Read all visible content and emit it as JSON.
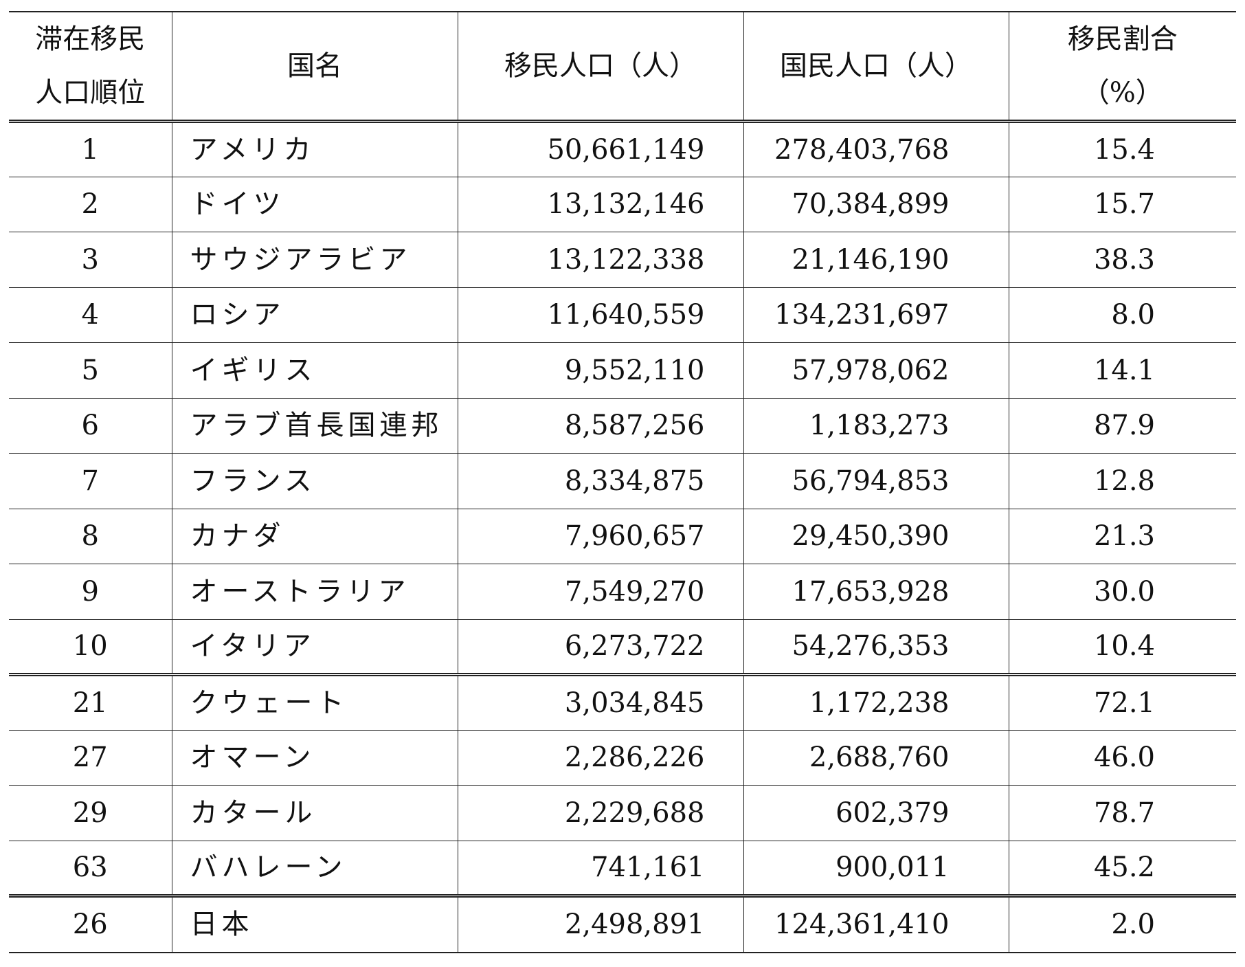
{
  "headers": {
    "rank_line1": "滞在移民",
    "rank_line2": "人口順位",
    "country": "国名",
    "migrant_population": "移民人口（人）",
    "national_population": "国民人口（人）",
    "share_line1": "移民割合",
    "share_line2": "（%）"
  },
  "top10": [
    {
      "rank": "1",
      "country": "アメリカ",
      "migrant": "50,661,149",
      "national": "278,403,768",
      "share": "15.4"
    },
    {
      "rank": "2",
      "country": "ドイツ",
      "migrant": "13,132,146",
      "national": "70,384,899",
      "share": "15.7"
    },
    {
      "rank": "3",
      "country": "サウジアラビア",
      "migrant": "13,122,338",
      "national": "21,146,190",
      "share": "38.3"
    },
    {
      "rank": "4",
      "country": "ロシア",
      "migrant": "11,640,559",
      "national": "134,231,697",
      "share": "8.0"
    },
    {
      "rank": "5",
      "country": "イギリス",
      "migrant": "9,552,110",
      "national": "57,978,062",
      "share": "14.1"
    },
    {
      "rank": "6",
      "country": "アラブ首長国連邦",
      "migrant": "8,587,256",
      "national": "1,183,273",
      "share": "87.9"
    },
    {
      "rank": "7",
      "country": "フランス",
      "migrant": "8,334,875",
      "national": "56,794,853",
      "share": "12.8"
    },
    {
      "rank": "8",
      "country": "カナダ",
      "migrant": "7,960,657",
      "national": "29,450,390",
      "share": "21.3"
    },
    {
      "rank": "9",
      "country": "オーストラリア",
      "migrant": "7,549,270",
      "national": "17,653,928",
      "share": "30.0"
    },
    {
      "rank": "10",
      "country": "イタリア",
      "migrant": "6,273,722",
      "national": "54,276,353",
      "share": "10.4"
    }
  ],
  "gulf": [
    {
      "rank": "21",
      "country": "クウェート",
      "migrant": "3,034,845",
      "national": "1,172,238",
      "share": "72.1"
    },
    {
      "rank": "27",
      "country": "オマーン",
      "migrant": "2,286,226",
      "national": "2,688,760",
      "share": "46.0"
    },
    {
      "rank": "29",
      "country": "カタール",
      "migrant": "2,229,688",
      "national": "602,379",
      "share": "78.7"
    },
    {
      "rank": "63",
      "country": "バハレーン",
      "migrant": "741,161",
      "national": "900,011",
      "share": "45.2"
    }
  ],
  "japan": [
    {
      "rank": "26",
      "country": "日本",
      "migrant": "2,498,891",
      "national": "124,361,410",
      "share": "2.0"
    }
  ]
}
